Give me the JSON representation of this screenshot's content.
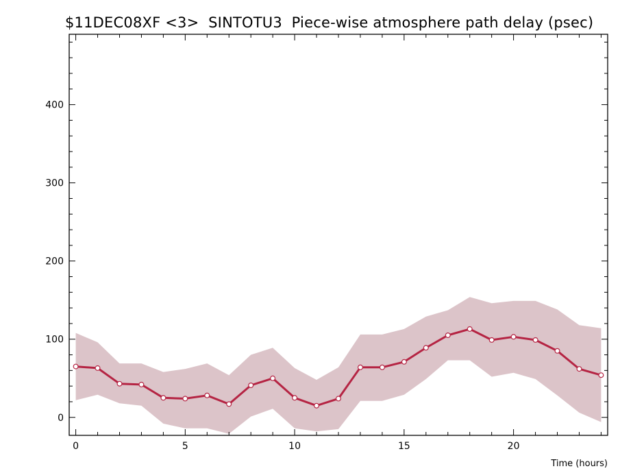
{
  "chart_data": {
    "type": "line",
    "title": "$11DEC08XF <3>  SINTOTU3  Piece-wise atmosphere path delay (psec)",
    "xlabel": "Time (hours)",
    "ylabel": "",
    "xlim": [
      -0.3,
      24.3
    ],
    "ylim": [
      -23,
      490
    ],
    "xticks": [
      0,
      5,
      10,
      15,
      20
    ],
    "yticks": [
      0,
      100,
      200,
      300,
      400
    ],
    "grid": false,
    "line_color": "#b52443",
    "band_color": "#dcc4c9",
    "x": [
      0,
      1,
      2,
      3,
      4,
      5,
      6,
      7,
      8,
      9,
      10,
      11,
      12,
      13,
      14,
      15,
      16,
      17,
      18,
      19,
      20,
      21,
      22,
      23,
      24
    ],
    "series": [
      {
        "values": [
          65,
          63,
          43,
          42,
          25,
          24,
          28,
          17,
          41,
          50,
          25,
          15,
          24,
          64,
          64,
          71,
          89,
          105,
          113,
          99,
          103,
          99,
          85,
          62,
          54
        ],
        "lower": [
          22,
          29,
          18,
          15,
          -8,
          -14,
          -14,
          -21,
          1,
          11,
          -14,
          -18,
          -15,
          21,
          21,
          29,
          49,
          73,
          73,
          52,
          57,
          49,
          28,
          6,
          -6
        ],
        "upper": [
          108,
          96,
          69,
          69,
          58,
          62,
          69,
          54,
          80,
          89,
          63,
          48,
          64,
          106,
          106,
          113,
          129,
          137,
          154,
          146,
          149,
          149,
          138,
          118,
          114
        ]
      }
    ]
  }
}
